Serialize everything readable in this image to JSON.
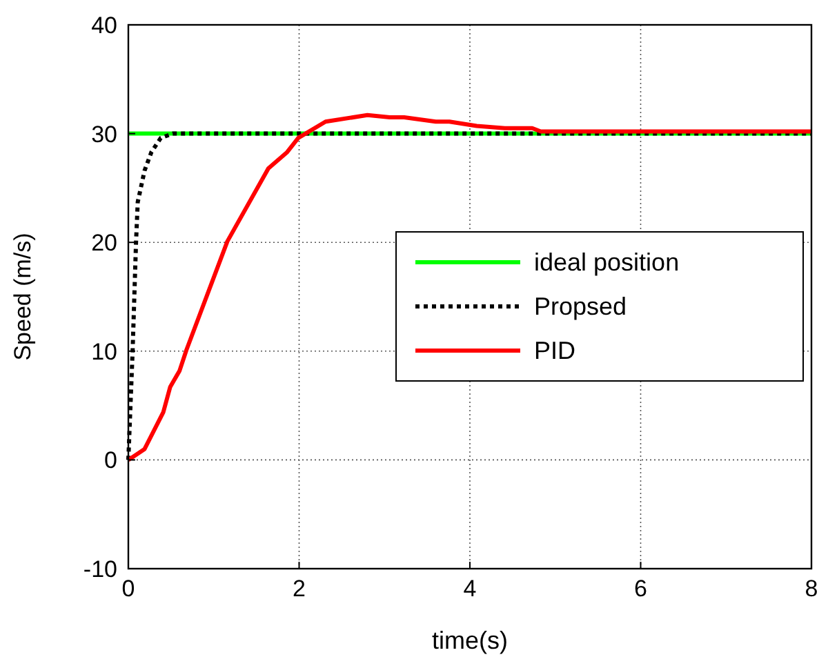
{
  "chart_data": {
    "type": "line",
    "xlabel": "time(s)",
    "ylabel": "Speed (m/s)",
    "xlim": [
      0,
      8
    ],
    "ylim": [
      -10,
      40
    ],
    "xticks": [
      0,
      2,
      4,
      6,
      8
    ],
    "yticks": [
      -10,
      0,
      10,
      20,
      30,
      40
    ],
    "grid": true,
    "legend": "center right",
    "series": [
      {
        "name": "ideal position",
        "color": "#00ff00",
        "line_style": "solid",
        "x": [
          0,
          8
        ],
        "values": [
          30,
          30
        ]
      },
      {
        "name": "Propsed",
        "color": "#000000",
        "line_style": "dotted",
        "x": [
          0,
          0.05,
          0.09,
          0.11,
          0.19,
          0.27,
          0.38,
          0.52,
          8
        ],
        "values": [
          0,
          10,
          20,
          23.7,
          26.6,
          28.3,
          29.6,
          30,
          30
        ]
      },
      {
        "name": "PID",
        "color": "#ff0000",
        "line_style": "solid",
        "x": [
          0,
          0.19,
          0.41,
          0.49,
          0.6,
          0.68,
          1.16,
          1.64,
          1.86,
          1.99,
          2.31,
          2.8,
          3.06,
          3.23,
          3.6,
          3.76,
          4.08,
          4.41,
          4.73,
          4.83,
          8
        ],
        "values": [
          0,
          1,
          4.4,
          6.7,
          8.2,
          10.1,
          20.1,
          26.8,
          28.3,
          29.6,
          31.1,
          31.7,
          31.5,
          31.5,
          31.1,
          31.1,
          30.7,
          30.5,
          30.5,
          30.2,
          30.2
        ]
      }
    ]
  }
}
